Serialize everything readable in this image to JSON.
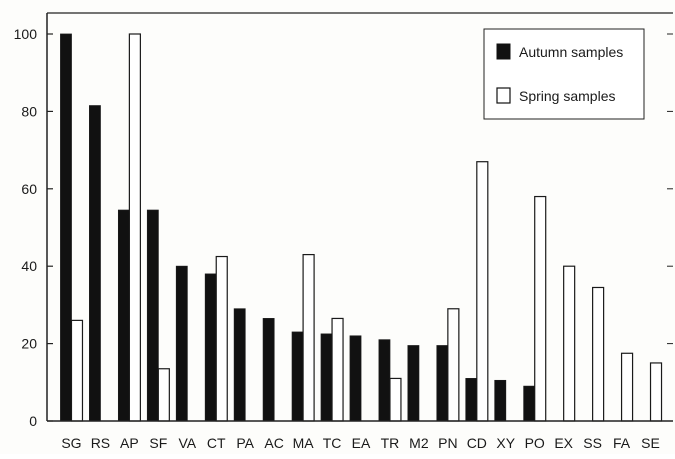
{
  "chart_data": {
    "type": "bar",
    "title": "",
    "xlabel": "",
    "ylabel": "",
    "ylim": [
      0,
      100
    ],
    "yticks": [
      0,
      20,
      40,
      60,
      80,
      100
    ],
    "grid": false,
    "legend_position": "top-right",
    "categories": [
      "SG",
      "RS",
      "AP",
      "SF",
      "VA",
      "CT",
      "PA",
      "AC",
      "MA",
      "TC",
      "EA",
      "TR",
      "M2",
      "PN",
      "CD",
      "XY",
      "PO",
      "EX",
      "SS",
      "FA",
      "SE"
    ],
    "series": [
      {
        "name": "Autumn samples",
        "fill": "#111111",
        "values": [
          100,
          81.5,
          54.5,
          54.5,
          40,
          38,
          29,
          26.5,
          23,
          22.5,
          22,
          21,
          19.5,
          19.5,
          11,
          10.5,
          9,
          0,
          0,
          0,
          0
        ]
      },
      {
        "name": "Spring samples",
        "fill": "#ffffff",
        "values": [
          26,
          0,
          100,
          13.5,
          0,
          42.5,
          0,
          0,
          43,
          26.5,
          0,
          11,
          0,
          29,
          67,
          0,
          58,
          40,
          34.5,
          17.5,
          15
        ]
      }
    ]
  },
  "colors": {
    "axis": "#222222",
    "bar_stroke": "#1a1a1a",
    "text": "#1a1a1a"
  }
}
